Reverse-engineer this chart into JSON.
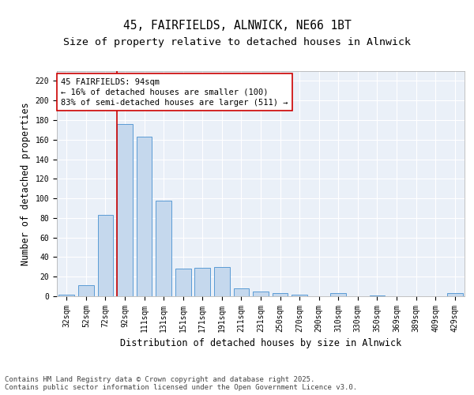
{
  "title_line1": "45, FAIRFIELDS, ALNWICK, NE66 1BT",
  "title_line2": "Size of property relative to detached houses in Alnwick",
  "xlabel": "Distribution of detached houses by size in Alnwick",
  "ylabel": "Number of detached properties",
  "categories": [
    "32sqm",
    "52sqm",
    "72sqm",
    "92sqm",
    "111sqm",
    "131sqm",
    "151sqm",
    "171sqm",
    "191sqm",
    "211sqm",
    "231sqm",
    "250sqm",
    "270sqm",
    "290sqm",
    "310sqm",
    "330sqm",
    "350sqm",
    "369sqm",
    "389sqm",
    "409sqm",
    "429sqm"
  ],
  "values": [
    2,
    11,
    83,
    176,
    163,
    98,
    28,
    29,
    30,
    8,
    5,
    3,
    2,
    0,
    3,
    0,
    1,
    0,
    0,
    0,
    3
  ],
  "bar_color": "#c5d8ed",
  "bar_edge_color": "#5b9bd5",
  "background_color": "#eaf0f8",
  "grid_color": "#ffffff",
  "annotation_text": "45 FAIRFIELDS: 94sqm\n← 16% of detached houses are smaller (100)\n83% of semi-detached houses are larger (511) →",
  "annotation_box_color": "#ffffff",
  "annotation_box_edge_color": "#cc0000",
  "vline_x_index": 3,
  "vline_color": "#cc0000",
  "ylim": [
    0,
    230
  ],
  "yticks": [
    0,
    20,
    40,
    60,
    80,
    100,
    120,
    140,
    160,
    180,
    200,
    220
  ],
  "footer_text": "Contains HM Land Registry data © Crown copyright and database right 2025.\nContains public sector information licensed under the Open Government Licence v3.0.",
  "title_fontsize": 10.5,
  "subtitle_fontsize": 9.5,
  "axis_label_fontsize": 8.5,
  "tick_fontsize": 7,
  "annotation_fontsize": 7.5,
  "footer_fontsize": 6.5
}
